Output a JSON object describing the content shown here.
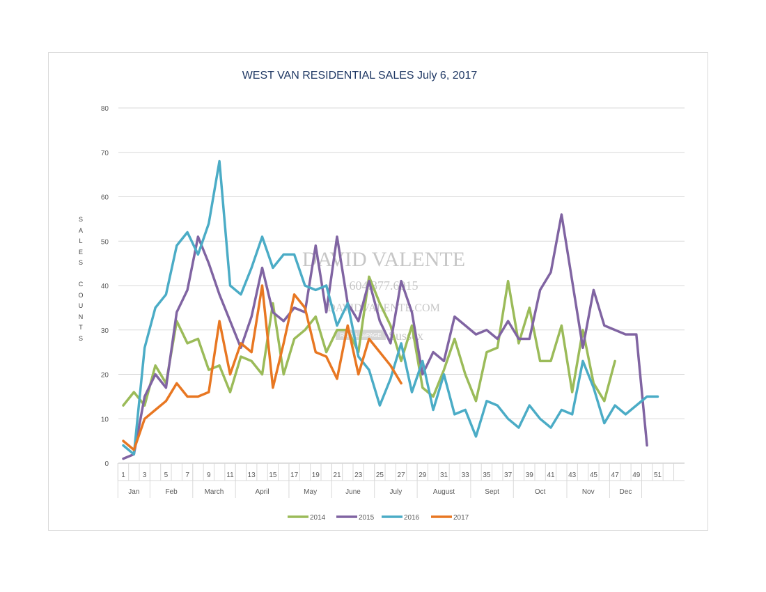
{
  "chart_data": {
    "type": "line",
    "title": "WEST VAN RESIDENTIAL SALES July 6, 2017",
    "ylabel": "SALES COUNTS",
    "xlabel": "",
    "ylim": [
      0,
      80
    ],
    "yticks": [
      0,
      10,
      20,
      30,
      40,
      50,
      60,
      70,
      80
    ],
    "xlim": [
      1,
      52
    ],
    "x_tick_labels": [
      "1",
      "3",
      "5",
      "7",
      "9",
      "11",
      "13",
      "15",
      "17",
      "19",
      "21",
      "23",
      "25",
      "27",
      "29",
      "31",
      "33",
      "35",
      "37",
      "39",
      "41",
      "43",
      "45",
      "47",
      "49",
      "51"
    ],
    "months": [
      {
        "name": "Jan",
        "start": 1,
        "end": 3
      },
      {
        "name": "Feb",
        "start": 4,
        "end": 7
      },
      {
        "name": "March",
        "start": 8,
        "end": 11
      },
      {
        "name": "April",
        "start": 12,
        "end": 16
      },
      {
        "name": "May",
        "start": 17,
        "end": 20
      },
      {
        "name": "June",
        "start": 21,
        "end": 24
      },
      {
        "name": "July",
        "start": 25,
        "end": 28
      },
      {
        "name": "August",
        "start": 29,
        "end": 33
      },
      {
        "name": "Sept",
        "start": 34,
        "end": 37
      },
      {
        "name": "Oct",
        "start": 38,
        "end": 42
      },
      {
        "name": "Nov",
        "start": 43,
        "end": 46
      },
      {
        "name": "Dec",
        "start": 47,
        "end": 49
      }
    ],
    "grid": true,
    "legend_position": "bottom",
    "series": [
      {
        "name": "2014",
        "color": "#9bbb59",
        "values": [
          13,
          16,
          13,
          22,
          18,
          32,
          27,
          28,
          21,
          22,
          16,
          24,
          23,
          20,
          36,
          20,
          28,
          30,
          33,
          25,
          30,
          30,
          25,
          42,
          36,
          31,
          23,
          31,
          17,
          15,
          21,
          28,
          20,
          14,
          25,
          26,
          41,
          27,
          35,
          23,
          23,
          31,
          16,
          30,
          18,
          14,
          23
        ]
      },
      {
        "name": "2015",
        "color": "#8064a2",
        "values": [
          1,
          2,
          15,
          20,
          17,
          34,
          39,
          51,
          45,
          38,
          32,
          26,
          33,
          44,
          34,
          32,
          35,
          34,
          49,
          34,
          51,
          36,
          32,
          41,
          32,
          27,
          41,
          34,
          20,
          25,
          23,
          33,
          31,
          29,
          30,
          28,
          32,
          28,
          28,
          39,
          43,
          56,
          41,
          26,
          39,
          31,
          30,
          29,
          29,
          4
        ]
      },
      {
        "name": "2016",
        "color": "#4bacc6",
        "values": [
          4,
          2,
          26,
          35,
          38,
          49,
          52,
          47,
          54,
          68,
          40,
          38,
          44,
          51,
          44,
          47,
          47,
          40,
          39,
          40,
          31,
          36,
          24,
          21,
          13,
          19,
          27,
          16,
          23,
          12,
          20,
          11,
          12,
          6,
          14,
          13,
          10,
          8,
          13,
          10,
          8,
          12,
          11,
          23,
          17,
          9,
          13,
          11,
          13,
          15,
          15
        ]
      },
      {
        "name": "2017",
        "color": "#e87722",
        "values": [
          5,
          3,
          10,
          12,
          14,
          18,
          15,
          15,
          16,
          32,
          20,
          27,
          25,
          40,
          17,
          27,
          38,
          35,
          25,
          24,
          19,
          31,
          20,
          28,
          25,
          22,
          18
        ]
      }
    ]
  },
  "watermark": {
    "name": "DAVID VALENTE",
    "phone": "604.377.6015",
    "site": "DAVIDVALENTE.COM",
    "brand": "ROYAL LePAGE",
    "office": "Sussex"
  }
}
